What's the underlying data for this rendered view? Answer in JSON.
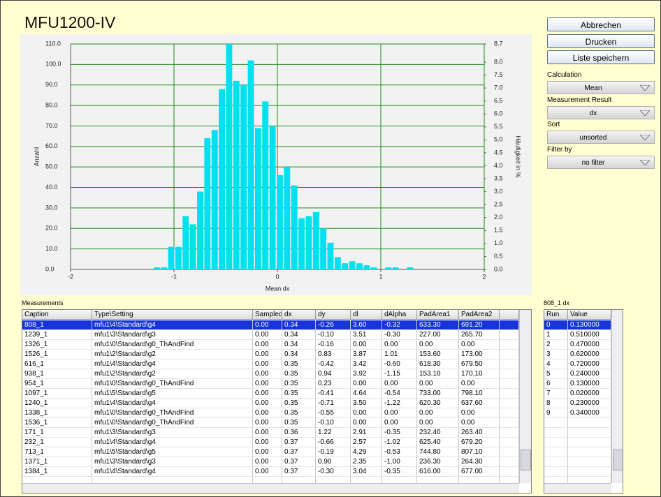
{
  "window": {
    "title": "MFU1200-IV"
  },
  "buttons": [
    "Abbrechen",
    "Drucken",
    "Liste speichern"
  ],
  "controls": [
    {
      "label": "Calculation",
      "value": "Mean"
    },
    {
      "label": "Measurement Result",
      "value": "dx"
    },
    {
      "label": "Sort",
      "value": "unsorted"
    },
    {
      "label": "Filter by",
      "value": "no filter"
    }
  ],
  "chart_data": {
    "type": "histogram",
    "xlabel": "Mean dx",
    "ylabel": "Anzahl",
    "y2label": "Häufigkeit in %",
    "bins": [
      -1.2,
      -1.13,
      -1.06,
      -0.99,
      -0.92,
      -0.85,
      -0.78,
      -0.71,
      -0.64,
      -0.57,
      -0.5,
      -0.43,
      -0.36,
      -0.29,
      -0.22,
      -0.15,
      -0.08,
      -0.01,
      0.06,
      0.13,
      0.2,
      0.27,
      0.34,
      0.41,
      0.48,
      0.55,
      0.62,
      0.69,
      0.76,
      0.83,
      0.9,
      0.97,
      1.04,
      1.11,
      1.18,
      1.25,
      1.32
    ],
    "counts": [
      1,
      1,
      11,
      11,
      26,
      22,
      38,
      64,
      68,
      88,
      110,
      92,
      90,
      102,
      69,
      82,
      70,
      46,
      50,
      41,
      25,
      26,
      28,
      20,
      13,
      6,
      3,
      4,
      3,
      2,
      1,
      0,
      1,
      1,
      0,
      1
    ],
    "color": "#00e1f0",
    "grid": true,
    "grid_color": "#1e8c1e",
    "xlim": [
      -2,
      2
    ],
    "xticks": [
      -2,
      -1,
      0,
      1,
      2
    ],
    "ylim": [
      0,
      110
    ],
    "yticks": [
      {
        "value": 0,
        "label": "0.0"
      },
      {
        "value": 10,
        "label": "10.0"
      },
      {
        "value": 20,
        "label": "20.0"
      },
      {
        "value": 30,
        "label": "30.0"
      },
      {
        "value": 40,
        "label": "40.0"
      },
      {
        "value": 50,
        "label": "50.0"
      },
      {
        "value": 60,
        "label": "60.0"
      },
      {
        "value": 70,
        "label": "70.0"
      },
      {
        "value": 80,
        "label": "80.0"
      },
      {
        "value": 90,
        "label": "90.0"
      },
      {
        "value": 100,
        "label": "100.0"
      },
      {
        "value": 110,
        "label": "110.0"
      }
    ],
    "y2lim": [
      0,
      8.7
    ],
    "y2ticks": [
      {
        "value": 0,
        "label": "0.0"
      },
      0.5,
      {
        "value": 1,
        "label": "1.0"
      },
      1.5,
      {
        "value": 2,
        "label": "2.0"
      },
      2.5,
      {
        "value": 3,
        "label": "3.0"
      },
      3.5,
      {
        "value": 4,
        "label": "4.0"
      },
      4.5,
      {
        "value": 5,
        "label": "5.0"
      },
      5.5,
      {
        "value": 6,
        "label": "6.0"
      },
      6.5,
      {
        "value": 7,
        "label": "7.0"
      },
      7.5,
      {
        "value": 8,
        "label": "8.0"
      },
      8.7
    ]
  },
  "measurements": {
    "title": "Measurements",
    "columns": [
      "Caption",
      "Type\\Setting",
      "Sampled",
      "dx",
      "dy",
      "dl",
      "dAlpha",
      "PadArea1",
      "PadArea2"
    ],
    "rows": [
      [
        "808_1",
        "mfu1\\4\\Standard\\g4",
        "0.00",
        "0.34",
        "-0.26",
        "3.60",
        "-0.32",
        "633.30",
        "691.20"
      ],
      [
        "1239_1",
        "mfu1\\3\\Standard\\g3",
        "0.00",
        "0.34",
        "-0.10",
        "3.51",
        "-0.30",
        "227.00",
        "265.70"
      ],
      [
        "1326_1",
        "mfu1\\0\\Standard\\g0_ThAndFind",
        "0.00",
        "0.34",
        "-0.16",
        "0.00",
        "0.00",
        "0.00",
        "0.00"
      ],
      [
        "1526_1",
        "mfu1\\2\\Standard\\g2",
        "0.00",
        "0.34",
        "0.83",
        "3.87",
        "1.01",
        "153.60",
        "173.00"
      ],
      [
        "616_1",
        "mfu1\\4\\Standard\\g4",
        "0.00",
        "0.35",
        "-0.42",
        "3.42",
        "-0.60",
        "618.30",
        "679.50"
      ],
      [
        "938_1",
        "mfu1\\2\\Standard\\g2",
        "0.00",
        "0.35",
        "0.94",
        "3.92",
        "-1.15",
        "153.10",
        "170.10"
      ],
      [
        "954_1",
        "mfu1\\0\\Standard\\g0_ThAndFind",
        "0.00",
        "0.35",
        "0.23",
        "0.00",
        "0.00",
        "0.00",
        "0.00"
      ],
      [
        "1097_1",
        "mfu1\\5\\Standard\\g5",
        "0.00",
        "0.35",
        "-0.41",
        "4.64",
        "-0.54",
        "733.00",
        "798.10"
      ],
      [
        "1240_1",
        "mfu1\\4\\Standard\\g4",
        "0.00",
        "0.35",
        "-0.71",
        "3.50",
        "-1.22",
        "620.30",
        "637.60"
      ],
      [
        "1338_1",
        "mfu1\\0\\Standard\\g0_ThAndFind",
        "0.00",
        "0.35",
        "-0.55",
        "0.00",
        "0.00",
        "0.00",
        "0.00"
      ],
      [
        "1536_1",
        "mfu1\\0\\Standard\\g0_ThAndFind",
        "0.00",
        "0.35",
        "-0.10",
        "0.00",
        "0.00",
        "0.00",
        "0.00"
      ],
      [
        "171_1",
        "mfu1\\3\\Standard\\g3",
        "0.00",
        "0.36",
        "1.22",
        "2.91",
        "-0.35",
        "232.40",
        "263.40"
      ],
      [
        "232_1",
        "mfu1\\4\\Standard\\g4",
        "0.00",
        "0.37",
        "-0.66",
        "2.57",
        "-1.02",
        "625.40",
        "679.20"
      ],
      [
        "713_1",
        "mfu1\\5\\Standard\\g5",
        "0.00",
        "0.37",
        "-0.19",
        "4.29",
        "-0.53",
        "744.80",
        "807.10"
      ],
      [
        "1371_1",
        "mfu1\\3\\Standard\\g3",
        "0.00",
        "0.37",
        "0.90",
        "2.35",
        "-1.00",
        "236.30",
        "264.30"
      ],
      [
        "1384_1",
        "mfu1\\4\\Standard\\g4",
        "0.00",
        "0.37",
        "-0.30",
        "3.04",
        "-0.35",
        "616.00",
        "677.00"
      ]
    ]
  },
  "detail": {
    "title": "808_1 dx",
    "columns": [
      "Run",
      "Value"
    ],
    "rows": [
      [
        "0",
        "0.130000"
      ],
      [
        "1",
        "0.510000"
      ],
      [
        "2",
        "0.470000"
      ],
      [
        "3",
        "0.620000"
      ],
      [
        "4",
        "0.720000"
      ],
      [
        "5",
        "0.240000"
      ],
      [
        "6",
        "0.130000"
      ],
      [
        "7",
        "0.020000"
      ],
      [
        "8",
        "0.230000"
      ],
      [
        "9",
        "0.340000"
      ]
    ]
  }
}
